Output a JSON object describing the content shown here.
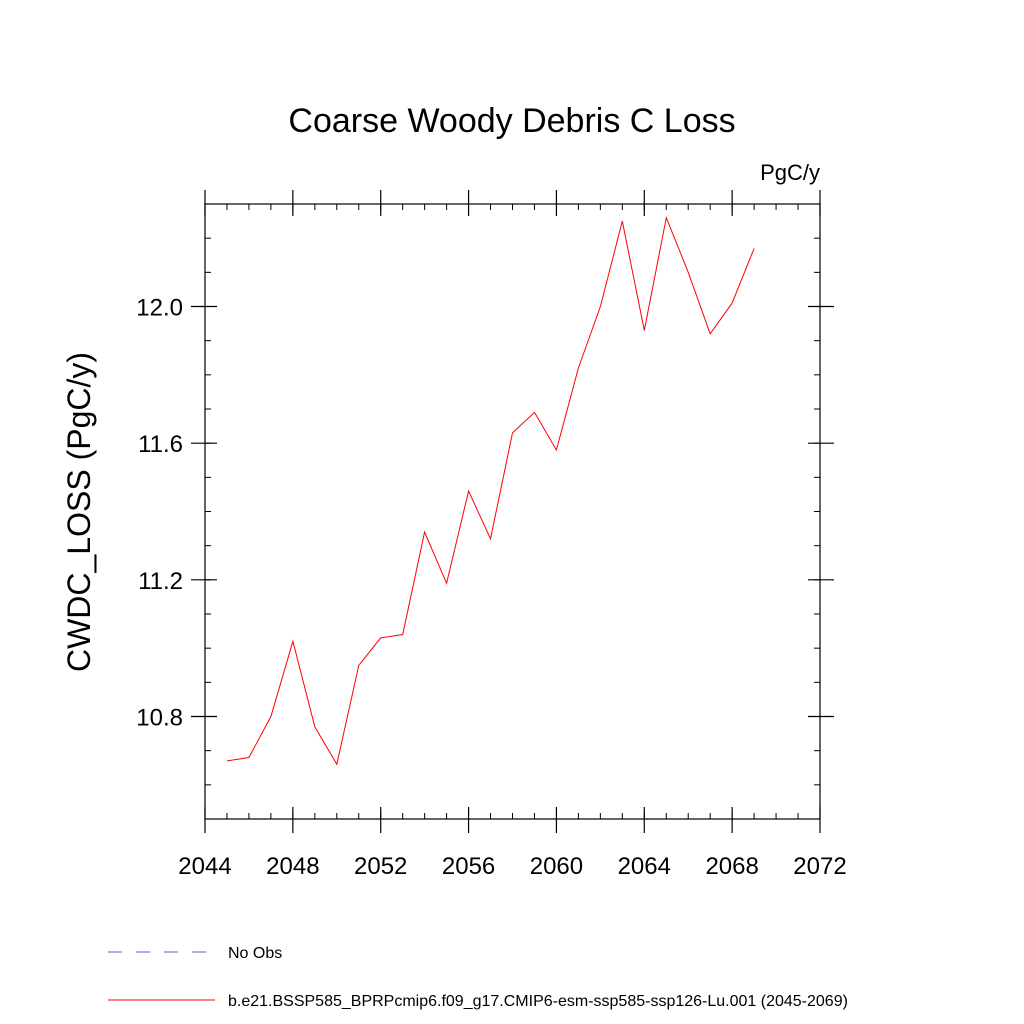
{
  "chart_data": {
    "type": "line",
    "title": "Coarse Woody Debris C Loss",
    "units_label": "PgC/y",
    "ylabel": "CWDC_LOSS  (PgC/y)",
    "xlabel": "",
    "xlim": [
      2044,
      2072
    ],
    "ylim": [
      10.5,
      12.3
    ],
    "x_ticks": [
      2044,
      2048,
      2052,
      2056,
      2060,
      2064,
      2068,
      2072
    ],
    "x_tick_labels": [
      "2044",
      "2048",
      "2052",
      "2056",
      "2060",
      "2064",
      "2068",
      "2072"
    ],
    "y_ticks": [
      10.8,
      11.2,
      11.6,
      12.0
    ],
    "y_tick_labels": [
      "10.8",
      "11.2",
      "11.6",
      "12.0"
    ],
    "y_minor_step": 0.1,
    "x_minor_step": 1,
    "grid": false,
    "legend_position": "bottom",
    "series": [
      {
        "name": "b.e21.BSSP585_BPRPcmip6.f09_g17.CMIP6-esm-ssp585-ssp126-Lu.001 (2045-2069)",
        "color": "#ff0000",
        "dash": "solid",
        "x": [
          2045,
          2046,
          2047,
          2048,
          2049,
          2050,
          2051,
          2052,
          2053,
          2054,
          2055,
          2056,
          2057,
          2058,
          2059,
          2060,
          2061,
          2062,
          2063,
          2064,
          2065,
          2066,
          2067,
          2068,
          2069
        ],
        "y": [
          10.67,
          10.68,
          10.8,
          11.02,
          10.77,
          10.66,
          10.95,
          11.03,
          11.04,
          11.34,
          11.19,
          11.46,
          11.32,
          11.63,
          11.69,
          11.58,
          11.82,
          12.0,
          12.25,
          11.93,
          12.26,
          12.1,
          11.92,
          12.01,
          12.17
        ]
      }
    ],
    "legend": [
      {
        "name": "No Obs",
        "color": "#6a5acd",
        "dash": "dashed"
      },
      {
        "name": "b.e21.BSSP585_BPRPcmip6.f09_g17.CMIP6-esm-ssp585-ssp126-Lu.001 (2045-2069)",
        "color": "#ff0000",
        "dash": "solid"
      }
    ]
  }
}
